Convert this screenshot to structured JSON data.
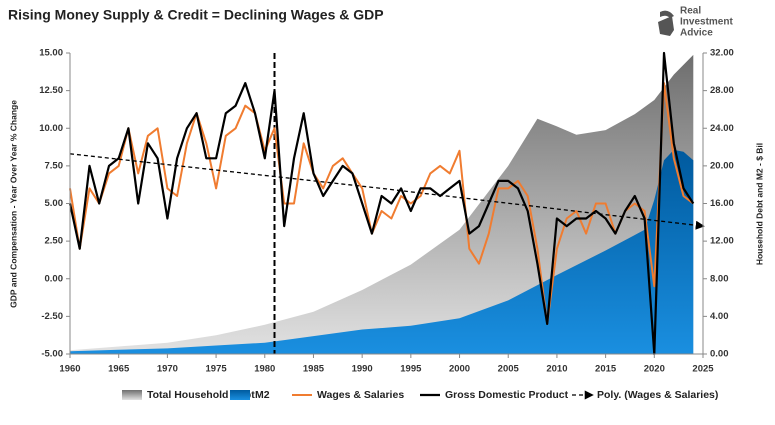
{
  "chart_data": {
    "type": "line",
    "title": "Rising Money Supply & Credit = Declining Wages & GDP",
    "brand": [
      "Real",
      "Investment",
      "Advice"
    ],
    "ylabel": "GDP and Compensation - Year Over Year % Change",
    "y2label": "Household Debt and M2 - $ Bil",
    "xlim": [
      1960,
      2025
    ],
    "xticks": [
      1960,
      1965,
      1970,
      1975,
      1980,
      1985,
      1990,
      1995,
      2000,
      2005,
      2010,
      2015,
      2020,
      2025
    ],
    "ylim": [
      -5,
      15
    ],
    "yticks": [
      {
        "value": -5,
        "label": "-5.00"
      },
      {
        "value": -2.5,
        "label": "-2.50"
      },
      {
        "value": 0,
        "label": "0.00"
      },
      {
        "value": 2.5,
        "label": "2.50"
      },
      {
        "value": 5,
        "label": "5.00"
      },
      {
        "value": 7.5,
        "label": "7.50"
      },
      {
        "value": 10,
        "label": "10.00"
      },
      {
        "value": 12.5,
        "label": "12.50"
      },
      {
        "value": 15,
        "label": "15.00"
      }
    ],
    "y2lim": [
      0,
      32
    ],
    "y2ticks": [
      {
        "value": 0,
        "label": "0.00"
      },
      {
        "value": 4,
        "label": "4.00"
      },
      {
        "value": 8,
        "label": "8.00"
      },
      {
        "value": 12,
        "label": "12.00"
      },
      {
        "value": 16,
        "label": "16.00"
      },
      {
        "value": 20,
        "label": "20.00"
      },
      {
        "value": 24,
        "label": "24.00"
      },
      {
        "value": 28,
        "label": "28.00"
      },
      {
        "value": 32,
        "label": "32.00"
      }
    ],
    "reference_line_x": 1981,
    "series": [
      {
        "name": "Total Household Debt",
        "kind": "area",
        "axis": "y2",
        "color": "#8c8c8c",
        "x": [
          1960,
          1965,
          1970,
          1975,
          1980,
          1985,
          1990,
          1995,
          2000,
          2005,
          2008,
          2010,
          2012,
          2015,
          2018,
          2020,
          2022,
          2024
        ],
        "values": [
          0.4,
          0.8,
          1.2,
          2.0,
          3.1,
          4.5,
          6.8,
          9.5,
          13.2,
          20.0,
          25.0,
          24.2,
          23.3,
          23.8,
          25.5,
          27.0,
          29.7,
          31.8
        ]
      },
      {
        "name": "M2",
        "kind": "area",
        "axis": "y2",
        "color": "#0a7fd0",
        "x": [
          1960,
          1965,
          1970,
          1975,
          1980,
          1985,
          1990,
          1995,
          2000,
          2005,
          2010,
          2015,
          2019,
          2020,
          2021,
          2022,
          2023,
          2024
        ],
        "values": [
          0.3,
          0.45,
          0.6,
          0.9,
          1.2,
          1.9,
          2.6,
          3.0,
          3.8,
          5.7,
          8.4,
          11.0,
          13.2,
          16.4,
          20.6,
          21.7,
          21.5,
          20.6
        ]
      },
      {
        "name": "Wages & Salaries",
        "kind": "line",
        "axis": "y",
        "color": "#f07c30",
        "width": 2,
        "x": [
          1960,
          1961,
          1962,
          1963,
          1964,
          1965,
          1966,
          1967,
          1968,
          1969,
          1970,
          1971,
          1972,
          1973,
          1974,
          1975,
          1976,
          1977,
          1978,
          1979,
          1980,
          1981,
          1982,
          1983,
          1984,
          1985,
          1986,
          1987,
          1988,
          1989,
          1990,
          1991,
          1992,
          1993,
          1994,
          1995,
          1996,
          1997,
          1998,
          1999,
          2000,
          2001,
          2002,
          2003,
          2004,
          2005,
          2006,
          2007,
          2008,
          2009,
          2010,
          2011,
          2012,
          2013,
          2014,
          2015,
          2016,
          2017,
          2018,
          2019,
          2020,
          2021,
          2022,
          2023,
          2024
        ],
        "values": [
          6,
          2,
          6,
          5,
          7,
          7.5,
          10,
          7,
          9.5,
          10,
          6,
          5.5,
          9,
          11,
          9,
          6,
          9.5,
          10,
          11.5,
          11,
          8.5,
          10,
          5,
          5,
          9,
          7,
          6,
          7.5,
          8,
          7,
          6,
          3,
          4.5,
          4,
          5.5,
          5,
          5.5,
          7,
          7.5,
          7,
          8.5,
          2,
          1,
          3,
          6,
          6,
          6.5,
          5.5,
          2,
          -3,
          2,
          4,
          4.5,
          3,
          5,
          5,
          3,
          4.5,
          5,
          4.5,
          -0.5,
          13,
          8,
          5.5,
          5
        ]
      },
      {
        "name": "Gross Domestic Product",
        "kind": "line",
        "axis": "y",
        "color": "#000000",
        "width": 2.2,
        "x": [
          1960,
          1961,
          1962,
          1963,
          1964,
          1965,
          1966,
          1967,
          1968,
          1969,
          1970,
          1971,
          1972,
          1973,
          1974,
          1975,
          1976,
          1977,
          1978,
          1979,
          1980,
          1981,
          1982,
          1983,
          1984,
          1985,
          1986,
          1987,
          1988,
          1989,
          1990,
          1991,
          1992,
          1993,
          1994,
          1995,
          1996,
          1997,
          1998,
          1999,
          2000,
          2001,
          2002,
          2003,
          2004,
          2005,
          2006,
          2007,
          2008,
          2009,
          2010,
          2011,
          2012,
          2013,
          2014,
          2015,
          2016,
          2017,
          2018,
          2019,
          2020,
          2021,
          2022,
          2023,
          2024
        ],
        "values": [
          5,
          2,
          7.5,
          5,
          7.5,
          8,
          10,
          5,
          9,
          8,
          4,
          8,
          10,
          11,
          8,
          8,
          11,
          11.5,
          13,
          11,
          8,
          12.5,
          3.5,
          8,
          11,
          7,
          5.5,
          6.5,
          7.5,
          7,
          5,
          3,
          5.5,
          5,
          6,
          4.5,
          6,
          6,
          5.5,
          6,
          6.5,
          3,
          3.5,
          5,
          6.5,
          6.5,
          6,
          4.5,
          1,
          -3,
          4,
          3.5,
          4,
          4,
          4.5,
          4,
          3,
          4.5,
          5.5,
          4,
          -5,
          15,
          9,
          6,
          5
        ]
      },
      {
        "name": "Poly. (Wages & Salaries)",
        "kind": "trend",
        "axis": "y",
        "color": "#000000",
        "width": 1.3,
        "x": [
          1960,
          1992,
          2025
        ],
        "values": [
          8.3,
          6,
          3.5
        ]
      }
    ]
  }
}
